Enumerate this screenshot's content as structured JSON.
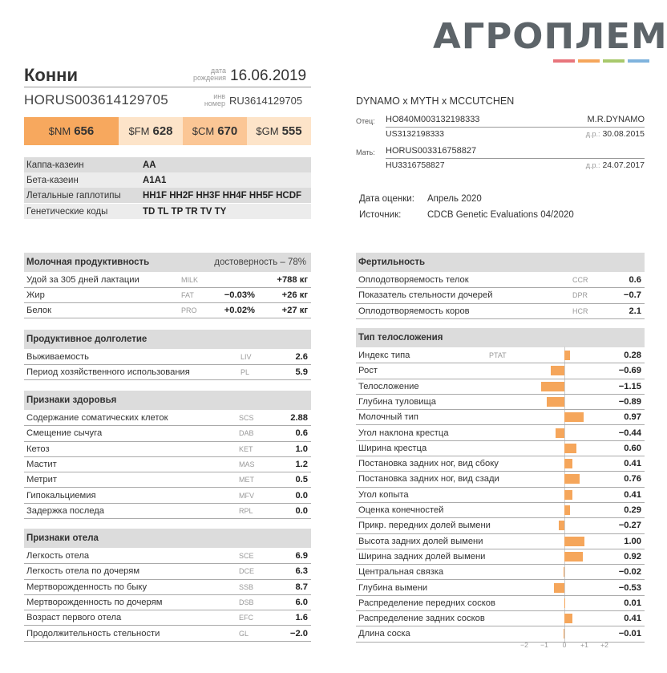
{
  "logo": {
    "text": "АГРОПЛЕМ",
    "bar_colors": [
      "#e8757c",
      "#f5a65b",
      "#a8c96c",
      "#7fb3dd"
    ]
  },
  "animal": {
    "name": "Конни",
    "date_caption_1": "дата",
    "date_caption_2": "рождения",
    "birth_date": "16.06.2019",
    "id": "HORUS003614129705",
    "inv_caption_1": "инв",
    "inv_caption_2": "номер",
    "inv_number": "RU3614129705"
  },
  "indexes": [
    {
      "label": "$NM",
      "value": "656",
      "color": "#f7a85e"
    },
    {
      "label": "$FM",
      "value": "628",
      "color": "#fde4c9"
    },
    {
      "label": "$CM",
      "value": "670",
      "color": "#fbc695"
    },
    {
      "label": "$GM",
      "value": "555",
      "color": "#fde4c9"
    }
  ],
  "info": [
    {
      "key": "Каппа-казеин",
      "value": "AA"
    },
    {
      "key": "Бета-казеин",
      "value": "A1A1"
    },
    {
      "key": "Летальные гаплотипы",
      "value": "HH1F HH2F HH3F HH4F HH5F HCDF"
    },
    {
      "key": "Генетические коды",
      "value": "TD TL TP TR TV TY"
    }
  ],
  "pedigree": {
    "sire_line": "DYNAMO x MYTH x MCCUTCHEN",
    "sire_caption": "Отец:",
    "sire_id": "HO840M003132198333",
    "sire_name": "M.R.DYNAMO",
    "sire_id2": "US3132198333",
    "dr_caption": "д.р.:",
    "sire_dob": "30.08.2015",
    "dam_caption": "Мать:",
    "dam_id": "HORUS003316758827",
    "dam_id2": "HU3316758827",
    "dam_dob": "24.07.2017"
  },
  "evaluation": {
    "date_label": "Дата оценки:",
    "date_value": "Апрель 2020",
    "source_label": "Источник:",
    "source_value": "CDCB Genetic Evaluations 04/2020"
  },
  "milk": {
    "title": "Молочная продуктивность",
    "reliability": "достоверность – 78%",
    "rows": [
      {
        "label": "Удой за 305 дней лактации",
        "abbr": "MILK",
        "pct": "",
        "value": "+788 кг"
      },
      {
        "label": "Жир",
        "abbr": "FAT",
        "pct": "−0.03%",
        "value": "+26 кг"
      },
      {
        "label": "Белок",
        "abbr": "PRO",
        "pct": "+0.02%",
        "value": "+27 кг"
      }
    ]
  },
  "longevity": {
    "title": "Продуктивное долголетие",
    "rows": [
      {
        "label": "Выживаемость",
        "abbr": "LIV",
        "value": "2.6"
      },
      {
        "label": "Период хозяйственного использования",
        "abbr": "PL",
        "value": "5.9"
      }
    ]
  },
  "health": {
    "title": "Признаки здоровья",
    "rows": [
      {
        "label": "Содержание соматических клеток",
        "abbr": "SCS",
        "value": "2.88"
      },
      {
        "label": "Смещение сычуга",
        "abbr": "DAB",
        "value": "0.6"
      },
      {
        "label": "Кетоз",
        "abbr": "KET",
        "value": "1.0"
      },
      {
        "label": "Мастит",
        "abbr": "MAS",
        "value": "1.2"
      },
      {
        "label": "Метрит",
        "abbr": "MET",
        "value": "0.5"
      },
      {
        "label": "Гипокальциемия",
        "abbr": "MFV",
        "value": "0.0"
      },
      {
        "label": "Задержка последа",
        "abbr": "RPL",
        "value": "0.0"
      }
    ]
  },
  "calving": {
    "title": "Признаки отела",
    "rows": [
      {
        "label": "Легкость отела",
        "abbr": "SCE",
        "value": "6.9"
      },
      {
        "label": "Легкость отела по дочерям",
        "abbr": "DCE",
        "value": "6.3"
      },
      {
        "label": "Мертворожденность по быку",
        "abbr": "SSB",
        "value": "8.7"
      },
      {
        "label": "Мертворожденность по дочерям",
        "abbr": "DSB",
        "value": "6.0"
      },
      {
        "label": "Возраст первого отела",
        "abbr": "EFC",
        "value": "1.6"
      },
      {
        "label": "Продолжительность стельности",
        "abbr": "GL",
        "value": "−2.0"
      }
    ]
  },
  "fertility": {
    "title": "Фертильность",
    "rows": [
      {
        "label": "Оплодотворяемость телок",
        "abbr": "CCR",
        "value": "0.6"
      },
      {
        "label": "Показатель стельности дочерей",
        "abbr": "DPR",
        "value": "−0.7"
      },
      {
        "label": "Оплодотворяемость коров",
        "abbr": "HCR",
        "value": "2.1"
      }
    ]
  },
  "chart_data": {
    "type": "bar",
    "title": "Тип телосложения",
    "orientation": "horizontal",
    "xlim": [
      -2,
      2
    ],
    "xticks": [
      "−2",
      "−1",
      "0",
      "+1",
      "+2"
    ],
    "categories": [
      "Индекс типа",
      "Рост",
      "Телосложение",
      "Глубина туловища",
      "Молочный тип",
      "Угол наклона крестца",
      "Ширина крестца",
      "Постановка задних ног, вид сбоку",
      "Постановка задних ног, вид сзади",
      "Угол копыта",
      "Оценка конечностей",
      "Прикр. передних долей вымени",
      "Высота задних долей вымени",
      "Ширина задних долей вымени",
      "Центральная связка",
      "Глубина вымени",
      "Распределение передних сосков",
      "Распределение задних сосков",
      "Длина соска"
    ],
    "abbrs": [
      "PTAT",
      "",
      "",
      "",
      "",
      "",
      "",
      "",
      "",
      "",
      "",
      "",
      "",
      "",
      "",
      "",
      "",
      "",
      ""
    ],
    "values": [
      0.28,
      -0.69,
      -1.15,
      -0.89,
      0.97,
      -0.44,
      0.6,
      0.41,
      0.76,
      0.41,
      0.29,
      -0.27,
      1.0,
      0.92,
      -0.02,
      -0.53,
      0.01,
      0.41,
      -0.01
    ],
    "labels": [
      "0.28",
      "−0.69",
      "−1.15",
      "−0.89",
      "0.97",
      "−0.44",
      "0.60",
      "0.41",
      "0.76",
      "0.41",
      "0.29",
      "−0.27",
      "1.00",
      "0.92",
      "−0.02",
      "−0.53",
      "0.01",
      "0.41",
      "−0.01"
    ],
    "bar_color": "#f5a65b"
  }
}
